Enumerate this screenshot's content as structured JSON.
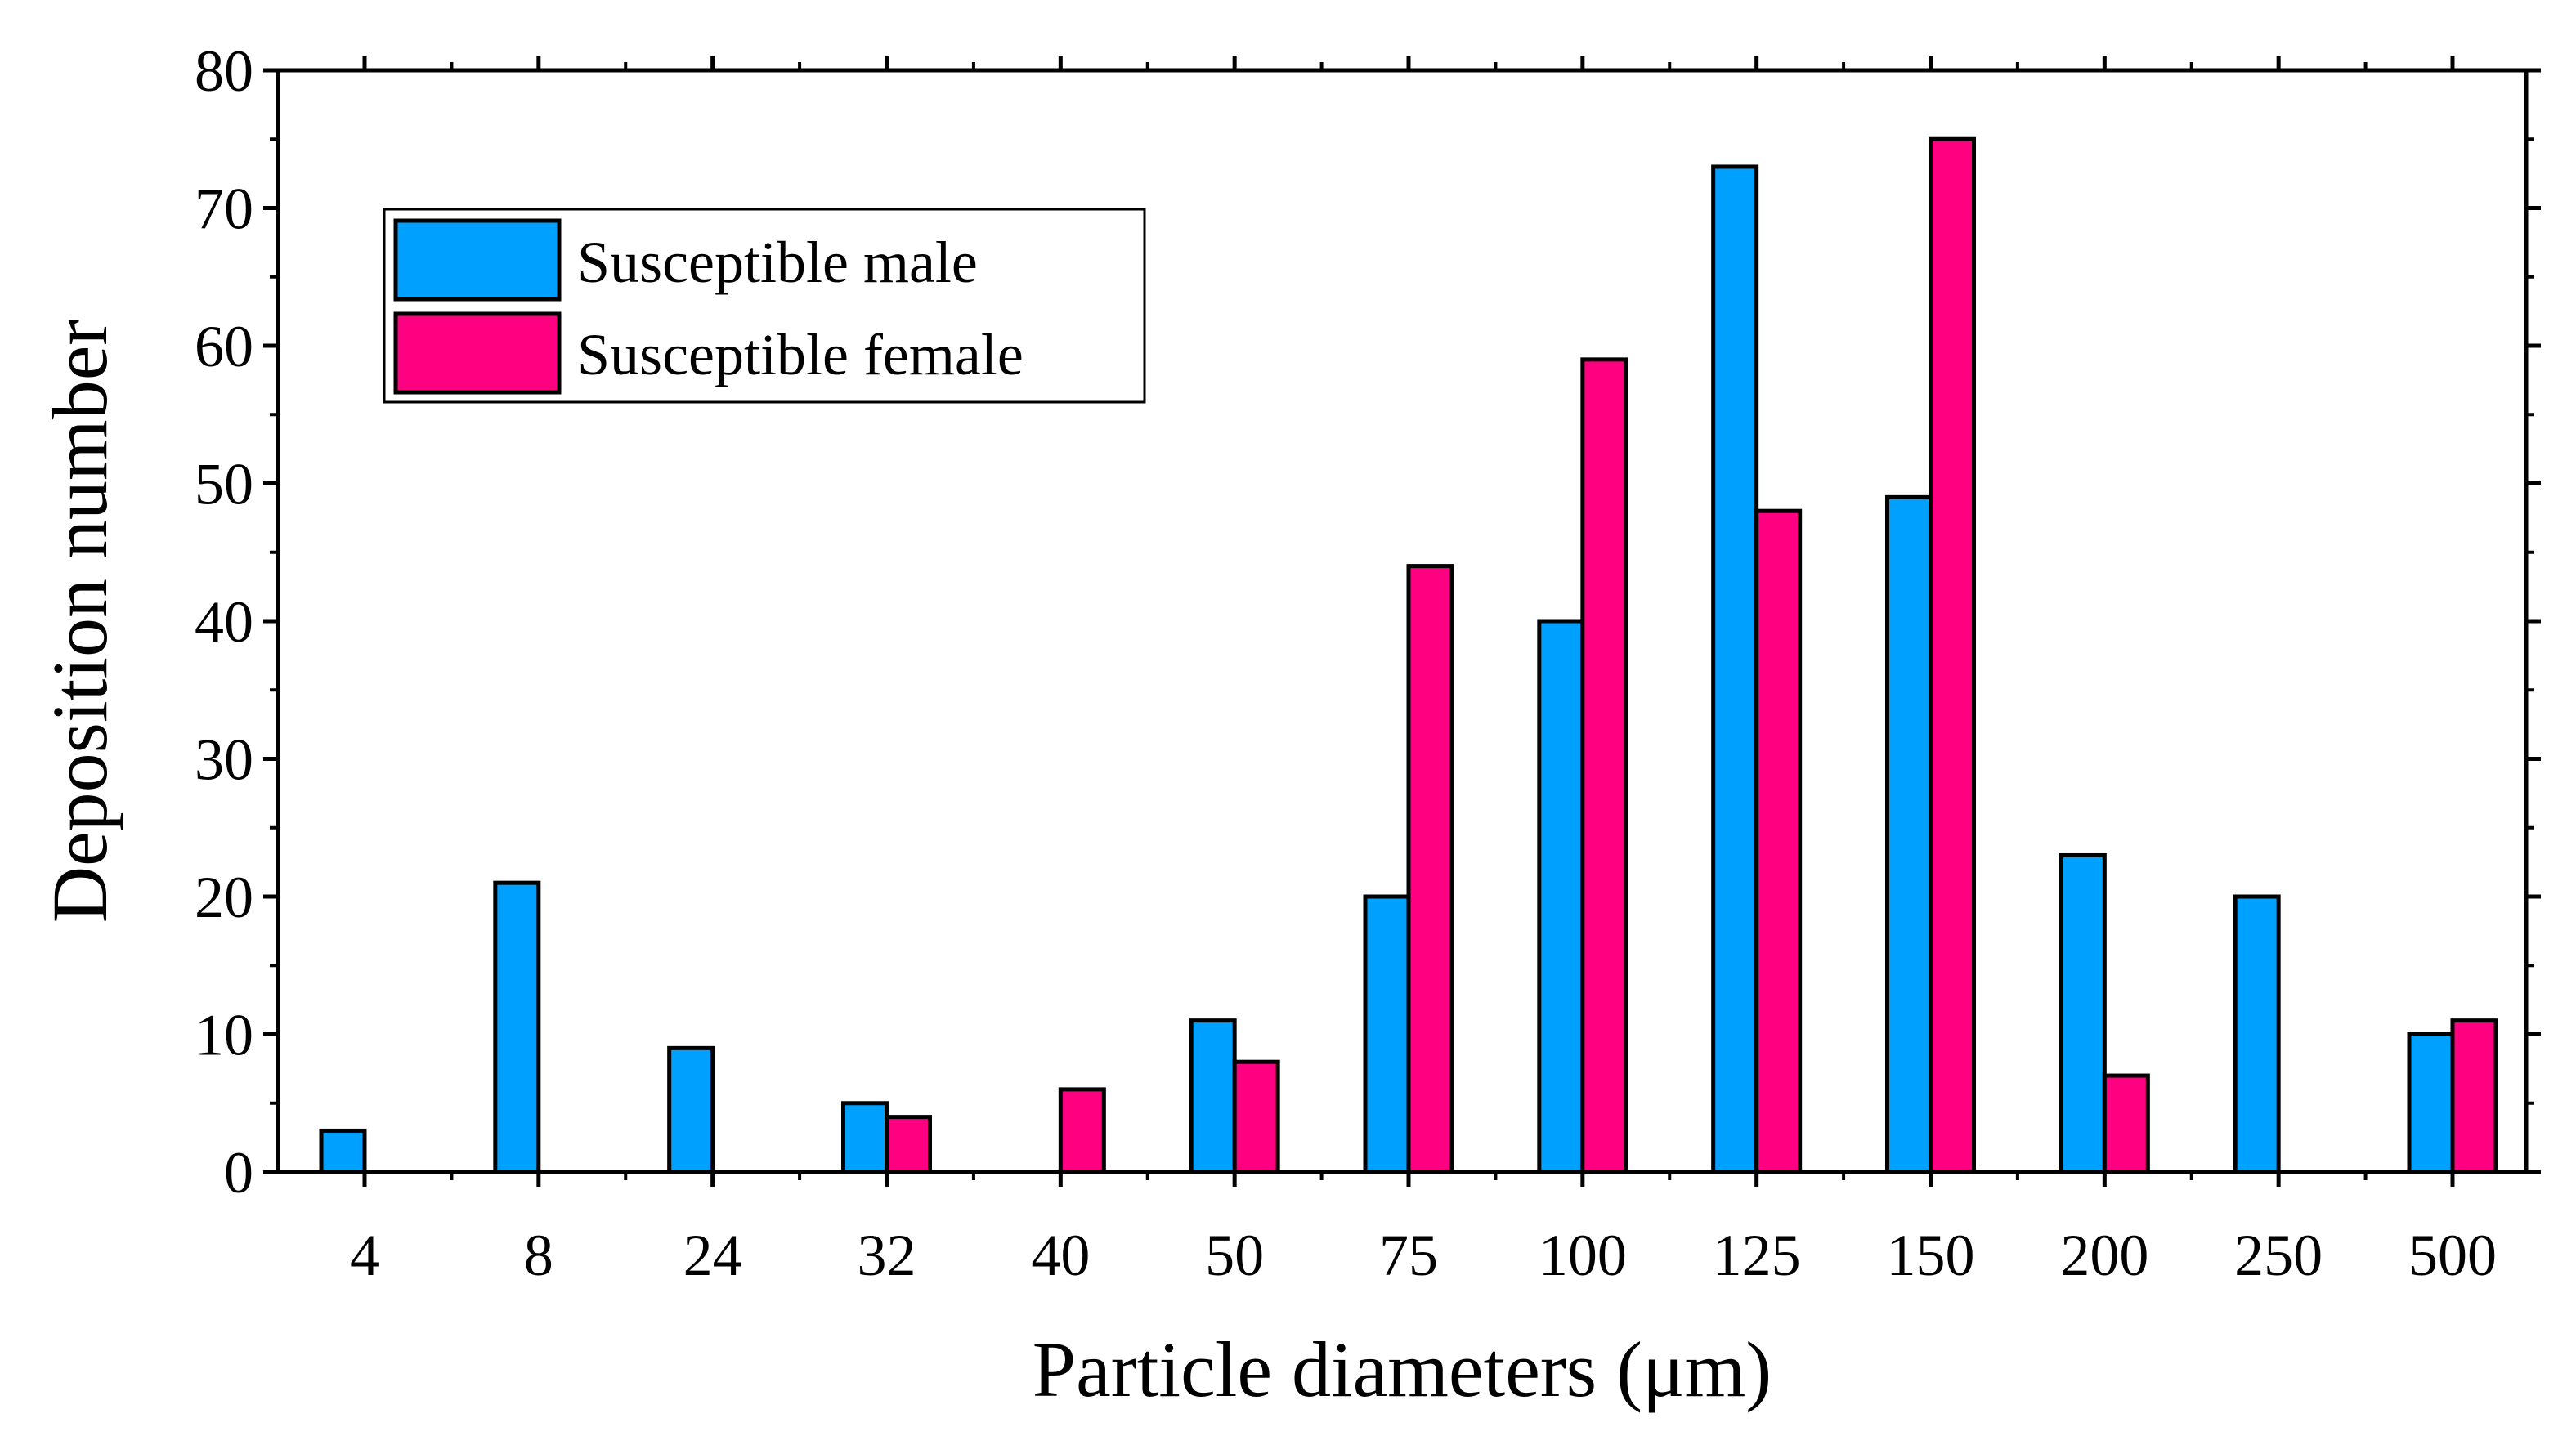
{
  "chart_data": {
    "type": "bar",
    "xlabel": "Particle diameters (μm)",
    "ylabel": "Deposition number",
    "ylim": [
      0,
      80
    ],
    "yticks": [
      0,
      10,
      20,
      30,
      40,
      50,
      60,
      70,
      80
    ],
    "categories": [
      "4",
      "8",
      "24",
      "32",
      "40",
      "50",
      "75",
      "100",
      "125",
      "150",
      "200",
      "250",
      "500"
    ],
    "series": [
      {
        "name": "Susceptible male",
        "color": "#00A0FF",
        "values": [
          3,
          21,
          9,
          5,
          0,
          11,
          20,
          40,
          73,
          49,
          23,
          20,
          10
        ]
      },
      {
        "name": "Susceptible female",
        "color": "#FF0080",
        "values": [
          0,
          0,
          0,
          4,
          6,
          8,
          44,
          59,
          48,
          75,
          7,
          0,
          11
        ]
      }
    ],
    "legend_position": "top-left",
    "grid": false
  }
}
